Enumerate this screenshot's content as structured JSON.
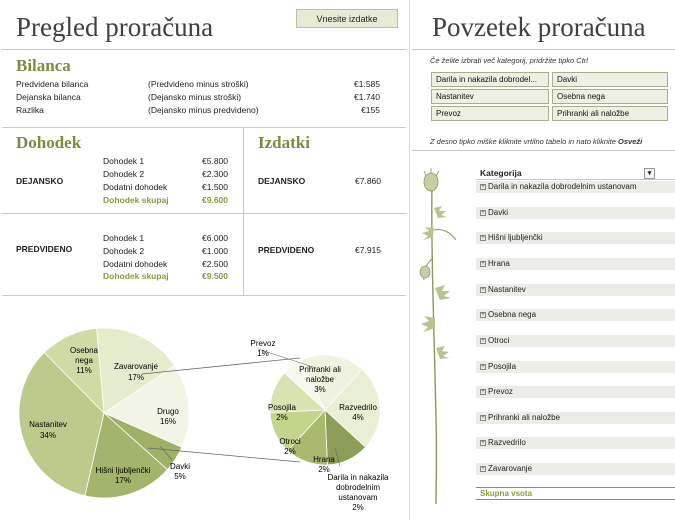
{
  "budget_overview": {
    "title": "Pregled proračuna",
    "enter_expenses_button": "Vnesite izdatke",
    "balance": {
      "title": "Bilanca",
      "rows": [
        {
          "label": "Predvidena bilanca",
          "formula": "(Predvideno minus stroški)",
          "value": "€1.585"
        },
        {
          "label": "Dejanska bilanca",
          "formula": "(Dejansko minus stroški)",
          "value": "€1.740"
        },
        {
          "label": "Razlika",
          "formula": "(Dejansko minus predvideno)",
          "value": "€155"
        }
      ]
    },
    "income": {
      "title": "Dohodek",
      "actual": {
        "label": "DEJANSKO",
        "rows": [
          {
            "label": "Dohodek 1",
            "value": "€5.800"
          },
          {
            "label": "Dohodek 2",
            "value": "€2.300"
          },
          {
            "label": "Dodatni dohodek",
            "value": "€1.500"
          }
        ],
        "total_label": "Dohodek skupaj",
        "total_value": "€9.600"
      },
      "projected": {
        "label": "PREDVIDENO",
        "rows": [
          {
            "label": "Dohodek 1",
            "value": "€6.000"
          },
          {
            "label": "Dohodek 2",
            "value": "€1.000"
          },
          {
            "label": "Dodatni dohodek",
            "value": "€2.500"
          }
        ],
        "total_label": "Dohodek skupaj",
        "total_value": "€9.500"
      }
    },
    "expenses": {
      "title": "Izdatki",
      "actual_label": "DEJANSKO",
      "actual_value": "€7.860",
      "projected_label": "PREDVIDENO",
      "projected_value": "€7.915"
    }
  },
  "chart_data": {
    "type": "pie",
    "main_pie": {
      "slices": [
        {
          "label": "Zavarovanje",
          "percent": 17,
          "color": "#e4eccd"
        },
        {
          "label": "Drugo",
          "percent": 16,
          "color": "#f2f5e6"
        },
        {
          "label": "Davki",
          "percent": 5,
          "color": "#9fb067"
        },
        {
          "label": "Hišni ljubljenčki",
          "percent": 17,
          "color": "#a3b46c"
        },
        {
          "label": "Nastanitev",
          "percent": 34,
          "color": "#bccb8b"
        },
        {
          "label": "Osebna nega",
          "percent": 11,
          "color": "#cfdba4"
        }
      ]
    },
    "secondary_pie": {
      "slices": [
        {
          "label": "Prihranki ali naložbe",
          "percent": 3,
          "color": "#eef2de"
        },
        {
          "label": "Razvedrilo",
          "percent": 4,
          "color": "#e9efd4"
        },
        {
          "label": "Darila in nakazila dobrodelnim ustanovam",
          "percent": 2,
          "color": "#8c9d57"
        },
        {
          "label": "Hrana",
          "percent": 2,
          "color": "#a9ba6e"
        },
        {
          "label": "Otroci",
          "percent": 2,
          "color": "#c3d58b"
        },
        {
          "label": "Posojila",
          "percent": 2,
          "color": "#d8e3b2"
        },
        {
          "label": "Prevoz",
          "percent": 1,
          "color": "#f6f8ee"
        }
      ]
    },
    "labels": {
      "zavarovanje": [
        "Zavarovanje",
        "17%"
      ],
      "drugo": [
        "Drugo",
        "16%"
      ],
      "davki": [
        "Davki",
        "5%"
      ],
      "hisni": [
        "Hišni ljubljenčki",
        "17%"
      ],
      "nastanitev": [
        "Nastanitev",
        "34%"
      ],
      "osebna": [
        "Osebna",
        "nega",
        "11%"
      ],
      "prevoz": [
        "Prevoz",
        "1%"
      ],
      "prihranki": [
        "Prihranki ali",
        "naložbe",
        "3%"
      ],
      "razvedrilo": [
        "Razvedrilo",
        "4%"
      ],
      "posojila": [
        "Posojila",
        "2%"
      ],
      "otroci": [
        "Otroci",
        "2%"
      ],
      "hrana": [
        "Hrana",
        "2%"
      ],
      "darila": [
        "Darila in nakazila",
        "dobrodelnim",
        "ustanovam",
        "2%"
      ]
    }
  },
  "budget_summary": {
    "title": "Povzetek proračuna",
    "slicer_hint": "Če želite izbrati več kategorij, pridržite tipko Ctrl",
    "slicer_buttons": [
      "Darila in nakazila dobrodel...",
      "Davki",
      "Nastanitev",
      "Osebna nega",
      "Prevoz",
      "Prihranki ali naložbe"
    ],
    "refresh_hint": "Z desno tipko miške kliknite vrtilno tabelo in nato kliknite",
    "refresh_word": "Osveži",
    "pivot": {
      "header": "Kategorija",
      "rows": [
        "Darila in nakazila dobrodelnim ustanovam",
        "Davki",
        "Hišni ljubljenčki",
        "Hrana",
        "Nastanitev",
        "Osebna nega",
        "Otroci",
        "Posojila",
        "Prevoz",
        "Prihranki ali naložbe",
        "Razvedrilo",
        "Zavarovanje"
      ],
      "total_label": "Skupna vsota"
    }
  }
}
